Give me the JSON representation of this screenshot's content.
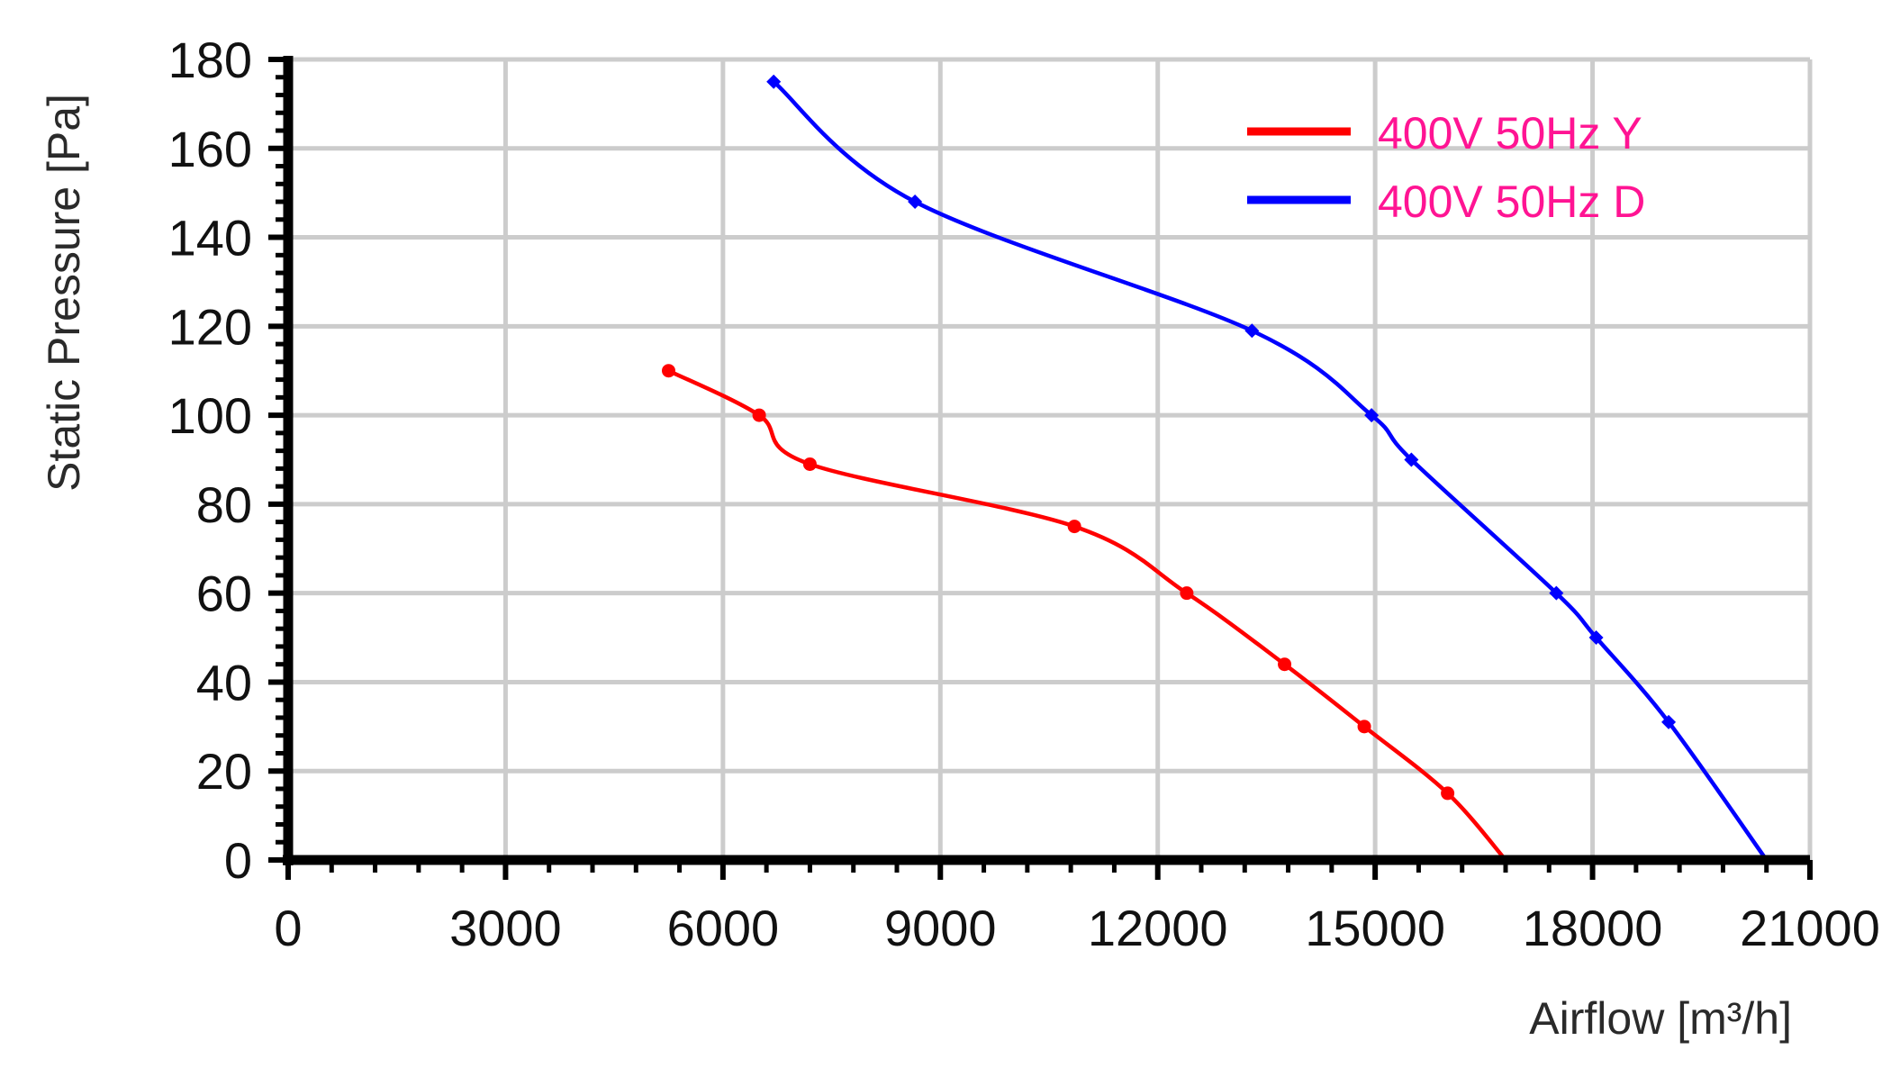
{
  "chart_data": {
    "type": "line",
    "title": "",
    "xlabel": "Airflow [m³/h]",
    "ylabel": "Static Pressure [Pa]",
    "xlim": [
      0,
      21000
    ],
    "ylim": [
      0,
      180
    ],
    "x_ticks": [
      0,
      3000,
      6000,
      9000,
      12000,
      15000,
      18000,
      21000
    ],
    "y_ticks": [
      0,
      20,
      40,
      60,
      80,
      100,
      120,
      140,
      160,
      180
    ],
    "grid": true,
    "legend_position": "top-right",
    "legend_text_color": "#ff1493",
    "series": [
      {
        "name": "400V 50Hz Y",
        "color": "#ff0000",
        "marker": "circle",
        "x": [
          5250,
          6500,
          7200,
          10850,
          12400,
          13750,
          14850,
          16000,
          16800
        ],
        "y": [
          110,
          100,
          89,
          75,
          60,
          44,
          30,
          15,
          0
        ]
      },
      {
        "name": "400V 50Hz D",
        "color": "#0000ff",
        "marker": "diamond",
        "x": [
          6700,
          8650,
          13300,
          14950,
          15500,
          17500,
          18050,
          19050,
          20400
        ],
        "y": [
          175,
          148,
          119,
          100,
          90,
          60,
          50,
          31,
          0
        ]
      }
    ]
  }
}
